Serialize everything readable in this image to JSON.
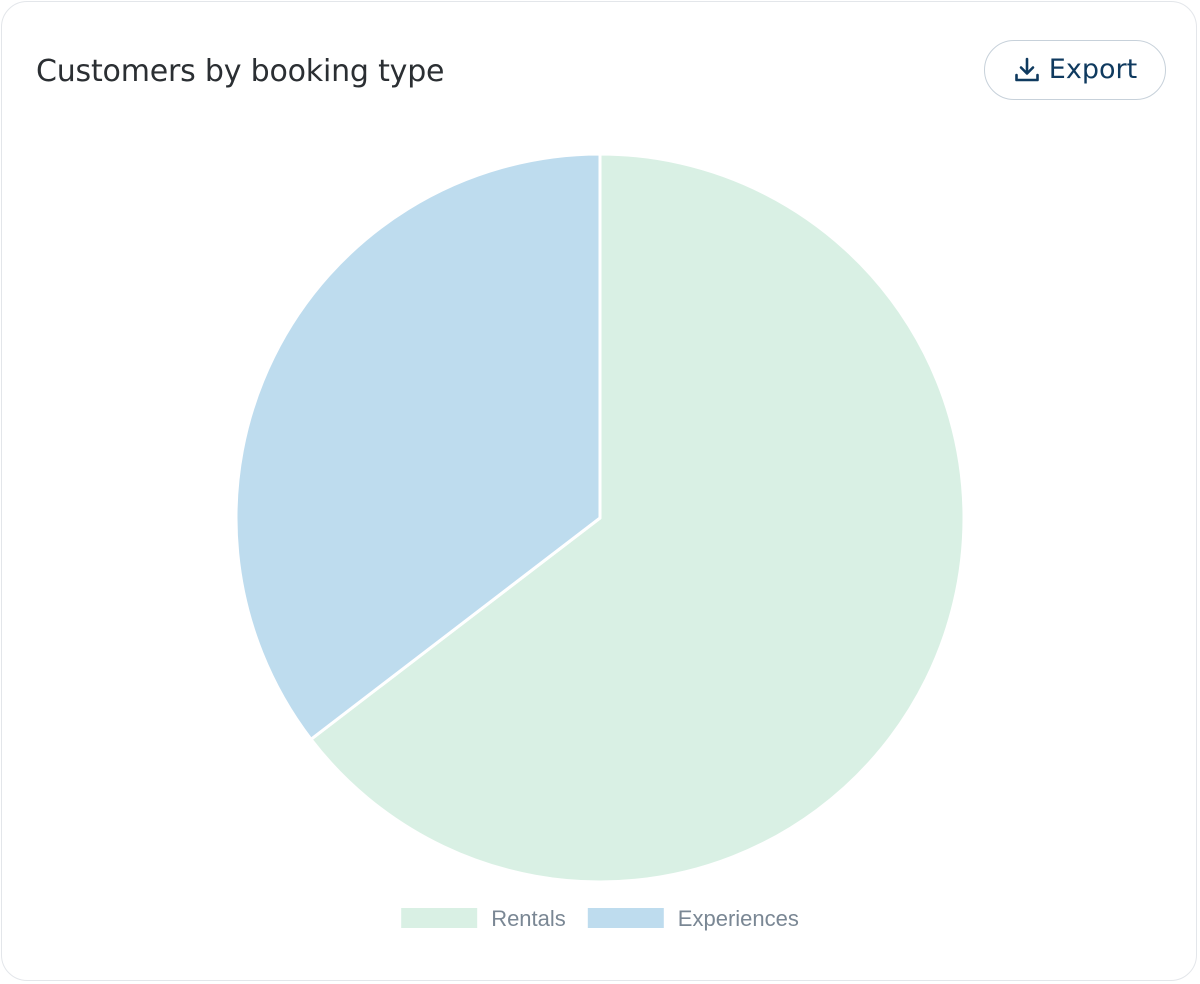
{
  "card": {
    "title": "Customers by booking type",
    "export_label": "Export",
    "export_icon": "download-icon"
  },
  "chart_data": {
    "type": "pie",
    "title": "Customers by booking type",
    "start_angle_deg": 0,
    "direction": "clockwise",
    "legend_position": "bottom",
    "slices": [
      {
        "label": "Rentals",
        "value": 64.6,
        "color": "#d9f0e4"
      },
      {
        "label": "Experiences",
        "value": 35.4,
        "color": "#bedcee"
      }
    ],
    "slice_border_color": "#ffffff"
  }
}
